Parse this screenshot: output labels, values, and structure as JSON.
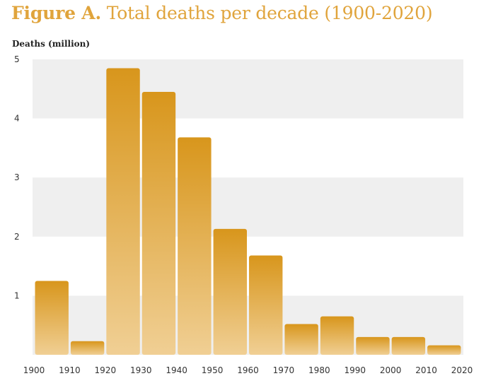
{
  "title_prefix": "Figure A.",
  "title_text": "Total deaths per decade (1900-2020)",
  "chart_data": {
    "type": "bar",
    "title": "Figure A. Total deaths per decade (1900-2020)",
    "ylabel": "Deaths (million)",
    "xlabel": "",
    "x_ticks": [
      "1900",
      "1910",
      "1920",
      "1930",
      "1940",
      "1950",
      "1960",
      "1970",
      "1980",
      "1990",
      "2000",
      "2010",
      "2020"
    ],
    "categories": [
      "1900-1910",
      "1910-1920",
      "1920-1930",
      "1930-1940",
      "1940-1950",
      "1950-1960",
      "1960-1970",
      "1970-1980",
      "1980-1990",
      "1990-2000",
      "2000-2010",
      "2010-2020"
    ],
    "values": [
      1.25,
      0.23,
      4.85,
      4.45,
      3.68,
      2.13,
      1.68,
      0.52,
      0.65,
      0.3,
      0.3,
      0.16
    ],
    "y_ticks": [
      "1",
      "2",
      "3",
      "4",
      "5"
    ],
    "ylim": [
      0,
      5
    ],
    "grid": "alternating horizontal bands",
    "legend": "none",
    "bar_color_top": "#d8961c",
    "bar_color_bottom": "#f0cf94",
    "band_color": "#efefef"
  }
}
